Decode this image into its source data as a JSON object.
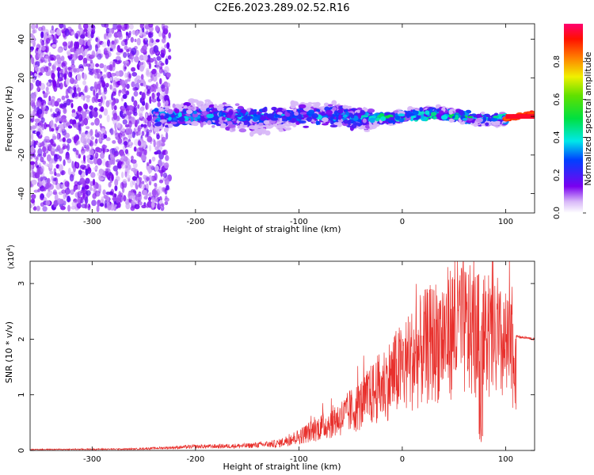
{
  "title": "C2E6.2023.289.02.52.R16",
  "chart_data": [
    {
      "type": "heatmap",
      "name": "spectrogram",
      "xlabel": "Height of straight line (km)",
      "ylabel": "Frequency (Hz)",
      "xlim": [
        -360,
        128
      ],
      "ylim": [
        -50,
        48
      ],
      "xticks": [
        -300,
        -200,
        -100,
        0,
        100
      ],
      "yticks": [
        -40,
        -20,
        0,
        20,
        40
      ],
      "description_bands": [
        {
          "x_range": [
            -360,
            -225
          ],
          "freq_spread": 48,
          "amplitude": 0.1
        },
        {
          "x_range": [
            -240,
            -30
          ],
          "freq_spread": 8,
          "amplitude": 0.3
        },
        {
          "x_range": [
            -30,
            100
          ],
          "freq_spread": 4,
          "amplitude": 0.4
        },
        {
          "x_range": [
            100,
            128
          ],
          "freq_spread": 1,
          "amplitude": 0.9
        }
      ],
      "colorbar": {
        "label": "Normalized spectral amplitude",
        "range": [
          0,
          1
        ],
        "ticks": [
          0.0,
          0.2,
          0.4,
          0.6,
          0.8
        ],
        "tick_labels": [
          "0.0",
          "0.2",
          "0.4",
          "0.6",
          "0.8"
        ]
      }
    },
    {
      "type": "line",
      "name": "snr",
      "xlabel": "Height of straight line (km)",
      "ylabel": "SNR (10 * v/v)",
      "multiplier": "(x10",
      "multiplier_exp": "4",
      "multiplier_close": ")",
      "xlim": [
        -360,
        128
      ],
      "ylim": [
        0,
        3.4
      ],
      "xticks": [
        -300,
        -200,
        -100,
        0,
        100
      ],
      "yticks": [
        0,
        1,
        2,
        3
      ],
      "color": "#e8302c",
      "envelope": {
        "x": [
          -360,
          -260,
          -200,
          -150,
          -120,
          -100,
          -80,
          -60,
          -40,
          -20,
          0,
          20,
          40,
          55,
          70,
          80,
          90,
          100,
          110,
          128
        ],
        "y": [
          0.02,
          0.03,
          0.08,
          0.1,
          0.15,
          0.3,
          0.5,
          0.7,
          1.0,
          1.4,
          1.8,
          2.2,
          2.5,
          2.7,
          2.5,
          2.4,
          2.3,
          2.2,
          2.05,
          2.0
        ]
      }
    }
  ]
}
